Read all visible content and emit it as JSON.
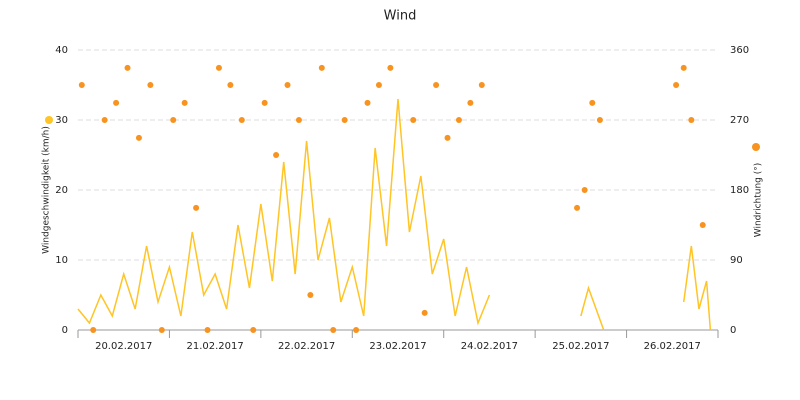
{
  "chart_data": {
    "type": "line+scatter",
    "title": "Wind",
    "xlim": [
      "2017-02-20 00:00",
      "2017-02-27 00:00"
    ],
    "xticks": [
      {
        "value": "2017-02-20 00:00",
        "label": "20.02.2017"
      },
      {
        "value": "2017-02-21 00:00",
        "label": "21.02.2017"
      },
      {
        "value": "2017-02-22 00:00",
        "label": "22.02.2017"
      },
      {
        "value": "2017-02-23 00:00",
        "label": "23.02.2017"
      },
      {
        "value": "2017-02-24 00:00",
        "label": "24.02.2017"
      },
      {
        "value": "2017-02-25 00:00",
        "label": "25.02.2017"
      },
      {
        "value": "2017-02-26 00:00",
        "label": "26.02.2017"
      }
    ],
    "ylim": [
      0,
      40
    ],
    "yticks": [
      0,
      10,
      20,
      30,
      40
    ],
    "y2lim": [
      0,
      360
    ],
    "y2ticks": [
      0,
      90,
      180,
      270,
      360
    ],
    "grid": true,
    "series": [
      {
        "name": "Windgeschwindigkeit (km/h)",
        "type": "line",
        "color": "#ffc425",
        "x": [
          "2017-02-20 00:00",
          "2017-02-20 03:00",
          "2017-02-20 06:00",
          "2017-02-20 09:00",
          "2017-02-20 12:00",
          "2017-02-20 15:00",
          "2017-02-20 18:00",
          "2017-02-20 21:00",
          "2017-02-21 00:00",
          "2017-02-21 03:00",
          "2017-02-21 06:00",
          "2017-02-21 09:00",
          "2017-02-21 12:00",
          "2017-02-21 15:00",
          "2017-02-21 18:00",
          "2017-02-21 21:00",
          "2017-02-22 00:00",
          "2017-02-22 03:00",
          "2017-02-22 06:00",
          "2017-02-22 09:00",
          "2017-02-22 12:00",
          "2017-02-22 15:00",
          "2017-02-22 18:00",
          "2017-02-22 21:00",
          "2017-02-23 00:00",
          "2017-02-23 03:00",
          "2017-02-23 06:00",
          "2017-02-23 09:00",
          "2017-02-23 12:00",
          "2017-02-23 15:00",
          "2017-02-23 18:00",
          "2017-02-23 21:00",
          "2017-02-24 00:00",
          "2017-02-24 03:00",
          "2017-02-24 06:00",
          "2017-02-24 09:00",
          "2017-02-24 12:00",
          "2017-02-24 15:00",
          "2017-02-25 12:00",
          "2017-02-25 14:00",
          "2017-02-25 16:00",
          "2017-02-25 18:00",
          "2017-02-26 00:00",
          "2017-02-26 15:00",
          "2017-02-26 17:00",
          "2017-02-26 19:00",
          "2017-02-26 21:00",
          "2017-02-26 22:00"
        ],
        "values": [
          3,
          1,
          5,
          2,
          8,
          3,
          12,
          4,
          9,
          2,
          14,
          5,
          8,
          3,
          15,
          6,
          18,
          7,
          24,
          8,
          27,
          10,
          16,
          4,
          9,
          2,
          26,
          12,
          33,
          14,
          22,
          8,
          13,
          2,
          9,
          1,
          5,
          null,
          2,
          6,
          3,
          0,
          null,
          4,
          12,
          3,
          7,
          0
        ]
      },
      {
        "name": "Windrichtung (°)",
        "type": "scatter",
        "axis": "y2",
        "color": "#f7931e",
        "x": [
          "2017-02-20 01:00",
          "2017-02-20 04:00",
          "2017-02-20 07:00",
          "2017-02-20 10:00",
          "2017-02-20 13:00",
          "2017-02-20 16:00",
          "2017-02-20 19:00",
          "2017-02-20 22:00",
          "2017-02-21 01:00",
          "2017-02-21 04:00",
          "2017-02-21 07:00",
          "2017-02-21 10:00",
          "2017-02-21 13:00",
          "2017-02-21 16:00",
          "2017-02-21 19:00",
          "2017-02-21 22:00",
          "2017-02-22 01:00",
          "2017-02-22 04:00",
          "2017-02-22 07:00",
          "2017-02-22 10:00",
          "2017-02-22 13:00",
          "2017-02-22 16:00",
          "2017-02-22 19:00",
          "2017-02-22 22:00",
          "2017-02-23 01:00",
          "2017-02-23 04:00",
          "2017-02-23 07:00",
          "2017-02-23 10:00",
          "2017-02-23 16:00",
          "2017-02-23 19:00",
          "2017-02-23 22:00",
          "2017-02-24 01:00",
          "2017-02-24 04:00",
          "2017-02-24 07:00",
          "2017-02-24 10:00",
          "2017-02-25 11:00",
          "2017-02-25 13:00",
          "2017-02-25 15:00",
          "2017-02-25 17:00",
          "2017-02-26 13:00",
          "2017-02-26 15:00",
          "2017-02-26 17:00",
          "2017-02-26 20:00"
        ],
        "values": [
          315,
          0,
          270,
          292,
          337,
          247,
          315,
          0,
          270,
          292,
          157,
          0,
          337,
          315,
          270,
          0,
          292,
          225,
          315,
          270,
          45,
          337,
          0,
          270,
          0,
          292,
          315,
          337,
          270,
          22,
          315,
          247,
          270,
          292,
          315,
          157,
          180,
          292,
          270,
          315,
          337,
          270,
          135
        ]
      }
    ]
  }
}
